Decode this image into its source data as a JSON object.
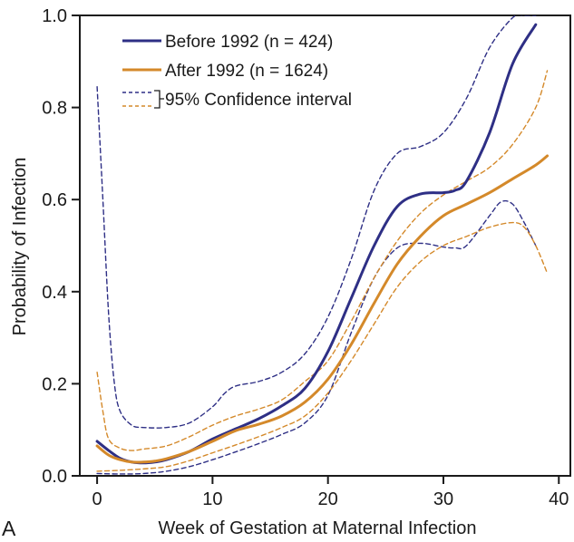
{
  "chart_data": {
    "type": "line",
    "panel_label": "A",
    "xlabel": "Week of Gestation at Maternal Infection",
    "ylabel": "Probability of Infection",
    "xlim": [
      -1.5,
      41
    ],
    "ylim": [
      0,
      1.0
    ],
    "xticks": [
      0,
      10,
      20,
      30,
      40
    ],
    "xtick_labels": [
      "0",
      "10",
      "20",
      "30",
      "40"
    ],
    "yticks": [
      0,
      0.2,
      0.4,
      0.6,
      0.8,
      1.0
    ],
    "ytick_labels": [
      "0.0",
      "0.2",
      "0.4",
      "0.6",
      "0.8",
      "1.0"
    ],
    "grid": false,
    "legend_position": "top-left",
    "legend": {
      "before": "Before 1992 (n = 424)",
      "after": "After 1992 (n = 1624)",
      "ci": "95% Confidence interval"
    },
    "colors": {
      "before": "#2e2f85",
      "after": "#d4892a",
      "axis": "#1a1a1a"
    },
    "series": [
      {
        "key": "before",
        "name": "Before 1992 (n = 424)",
        "style": "solid",
        "x": [
          0,
          1,
          2,
          3,
          4,
          5,
          6,
          8,
          10,
          12,
          14,
          16,
          18,
          20,
          22,
          24,
          26,
          28,
          30,
          31,
          32,
          34,
          36,
          38
        ],
        "y": [
          0.075,
          0.055,
          0.038,
          0.03,
          0.028,
          0.03,
          0.035,
          0.053,
          0.08,
          0.102,
          0.124,
          0.152,
          0.19,
          0.27,
          0.385,
          0.5,
          0.585,
          0.612,
          0.615,
          0.62,
          0.64,
          0.745,
          0.895,
          0.98
        ]
      },
      {
        "key": "before_lo",
        "style": "dashed",
        "x": [
          0,
          2,
          4,
          6,
          8,
          10,
          12,
          14,
          16,
          18,
          20,
          22,
          24,
          26,
          28,
          30,
          31,
          32,
          34,
          35,
          36,
          37,
          38
        ],
        "y": [
          0.005,
          0.004,
          0.005,
          0.01,
          0.02,
          0.035,
          0.052,
          0.07,
          0.09,
          0.115,
          0.175,
          0.31,
          0.43,
          0.495,
          0.505,
          0.497,
          0.495,
          0.5,
          0.565,
          0.595,
          0.59,
          0.55,
          0.5
        ]
      },
      {
        "key": "before_hi",
        "style": "dashed",
        "x": [
          0,
          0.5,
          1,
          1.5,
          2,
          3,
          4,
          6,
          8,
          10,
          11,
          12,
          14,
          16,
          18,
          20,
          22,
          24,
          26,
          28,
          30,
          32,
          34,
          36,
          37,
          38
        ],
        "y": [
          0.845,
          0.6,
          0.35,
          0.2,
          0.14,
          0.11,
          0.105,
          0.105,
          0.115,
          0.15,
          0.178,
          0.195,
          0.205,
          0.225,
          0.265,
          0.345,
          0.47,
          0.62,
          0.7,
          0.715,
          0.745,
          0.82,
          0.93,
          0.995,
          1.0,
          1.0
        ]
      },
      {
        "key": "after",
        "name": "After 1992 (n = 1624)",
        "style": "solid",
        "x": [
          0,
          1,
          2,
          3,
          4,
          5,
          6,
          8,
          10,
          12,
          14,
          16,
          18,
          20,
          22,
          24,
          26,
          28,
          30,
          32,
          34,
          36,
          38,
          39
        ],
        "y": [
          0.065,
          0.045,
          0.035,
          0.03,
          0.03,
          0.032,
          0.037,
          0.053,
          0.075,
          0.098,
          0.112,
          0.13,
          0.16,
          0.21,
          0.285,
          0.375,
          0.46,
          0.52,
          0.565,
          0.59,
          0.615,
          0.645,
          0.675,
          0.695
        ]
      },
      {
        "key": "after_lo",
        "style": "dashed",
        "x": [
          0,
          2,
          4,
          6,
          8,
          10,
          12,
          14,
          16,
          18,
          20,
          22,
          24,
          26,
          28,
          30,
          32,
          34,
          36,
          37,
          38,
          39
        ],
        "y": [
          0.01,
          0.012,
          0.015,
          0.02,
          0.033,
          0.05,
          0.067,
          0.085,
          0.105,
          0.13,
          0.18,
          0.25,
          0.33,
          0.41,
          0.465,
          0.5,
          0.52,
          0.54,
          0.55,
          0.54,
          0.5,
          0.44
        ]
      },
      {
        "key": "after_hi",
        "style": "dashed",
        "x": [
          0,
          0.5,
          1,
          2,
          3,
          4,
          6,
          8,
          10,
          12,
          14,
          16,
          18,
          20,
          22,
          24,
          26,
          28,
          30,
          32,
          34,
          36,
          38,
          39
        ],
        "y": [
          0.225,
          0.14,
          0.08,
          0.06,
          0.055,
          0.058,
          0.065,
          0.085,
          0.11,
          0.13,
          0.145,
          0.165,
          0.205,
          0.25,
          0.335,
          0.43,
          0.51,
          0.57,
          0.61,
          0.64,
          0.67,
          0.72,
          0.8,
          0.88
        ]
      }
    ]
  }
}
